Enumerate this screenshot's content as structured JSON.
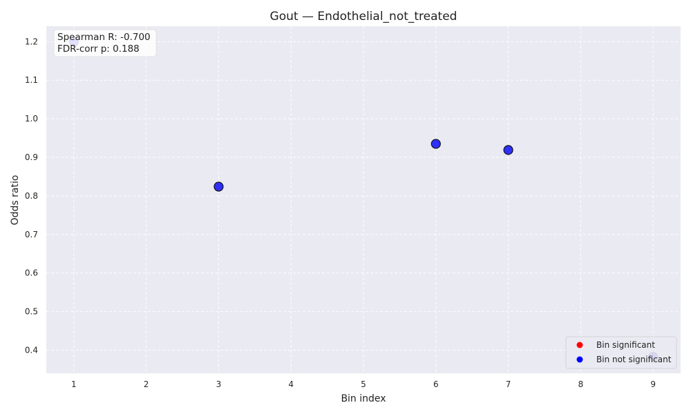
{
  "chart_data": {
    "type": "scatter",
    "title": "Gout — Endothelial_not_treated",
    "xlabel": "Bin index",
    "ylabel": "Odds ratio",
    "xlim": [
      0.62,
      9.38
    ],
    "ylim": [
      0.34,
      1.24
    ],
    "xticks": [
      1,
      2,
      3,
      4,
      5,
      6,
      7,
      8,
      9
    ],
    "yticks": [
      0.4,
      0.5,
      0.6,
      0.7,
      0.8,
      0.9,
      1.0,
      1.1,
      1.2
    ],
    "ytick_labels": [
      "0.4",
      "0.5",
      "0.6",
      "0.7",
      "0.8",
      "0.9",
      "1.0",
      "1.1",
      "1.2"
    ],
    "grid": true,
    "points": [
      {
        "x": 1,
        "y": 1.2,
        "significant": false
      },
      {
        "x": 3,
        "y": 0.824,
        "significant": false
      },
      {
        "x": 6,
        "y": 0.935,
        "significant": false
      },
      {
        "x": 7,
        "y": 0.919,
        "significant": false
      },
      {
        "x": 9,
        "y": 0.383,
        "significant": false
      }
    ],
    "stats": {
      "spearman": "Spearman R: -0.700",
      "fdr": "FDR-corr p: 0.188"
    },
    "legend": {
      "position": "lower-right",
      "entries": [
        {
          "label": "Bin significant",
          "color": "#ff0000"
        },
        {
          "label": "Bin not significant",
          "color": "#0000ff"
        }
      ]
    },
    "colors": {
      "plot_bg": "#eaeaf2",
      "significant": "#ff0000",
      "not_significant": "#0000ff"
    }
  }
}
